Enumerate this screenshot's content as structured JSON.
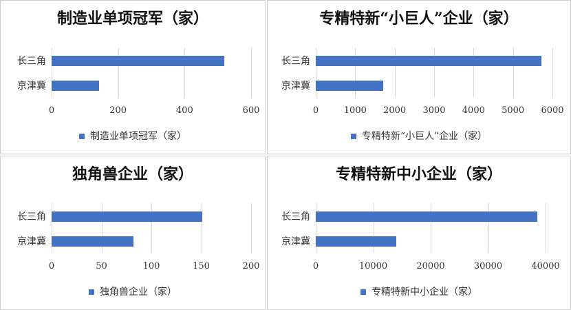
{
  "chart_data": [
    {
      "type": "bar",
      "orientation": "horizontal",
      "title": "制造业单项冠军（家）",
      "categories": [
        "长三角",
        "京津冀"
      ],
      "values": [
        520,
        143
      ],
      "xlim": [
        0,
        600
      ],
      "ticks": [
        "0",
        "200",
        "400",
        "600"
      ],
      "legend": "制造业单项冠军（家）",
      "legend_position": "bottom",
      "grid": true,
      "color": "#4472C4"
    },
    {
      "type": "bar",
      "orientation": "horizontal",
      "title": "专精特新“小巨人”企业（家）",
      "categories": [
        "长三角",
        "京津冀"
      ],
      "values": [
        5720,
        1710
      ],
      "xlim": [
        0,
        6000
      ],
      "ticks": [
        "0",
        "1000",
        "2000",
        "3000",
        "4000",
        "5000",
        "6000"
      ],
      "legend": "专精特新“小巨人”企业（家）",
      "legend_position": "bottom",
      "grid": true,
      "color": "#4472C4"
    },
    {
      "type": "bar",
      "orientation": "horizontal",
      "title": "独角兽企业（家）",
      "categories": [
        "长三角",
        "京津冀"
      ],
      "values": [
        151,
        82
      ],
      "xlim": [
        0,
        200
      ],
      "ticks": [
        "0",
        "50",
        "100",
        "150",
        "200"
      ],
      "legend": "独角兽企业（家）",
      "legend_position": "bottom",
      "grid": true,
      "color": "#4472C4"
    },
    {
      "type": "bar",
      "orientation": "horizontal",
      "title": "专精特新中小企业（家）",
      "categories": [
        "长三角",
        "京津冀"
      ],
      "values": [
        38600,
        14050
      ],
      "xlim": [
        0,
        40000
      ],
      "ticks": [
        "0",
        "10000",
        "20000",
        "30000",
        "40000"
      ],
      "legend": "专精特新中小企业（家）",
      "legend_position": "bottom",
      "grid": true,
      "color": "#4472C4"
    }
  ]
}
